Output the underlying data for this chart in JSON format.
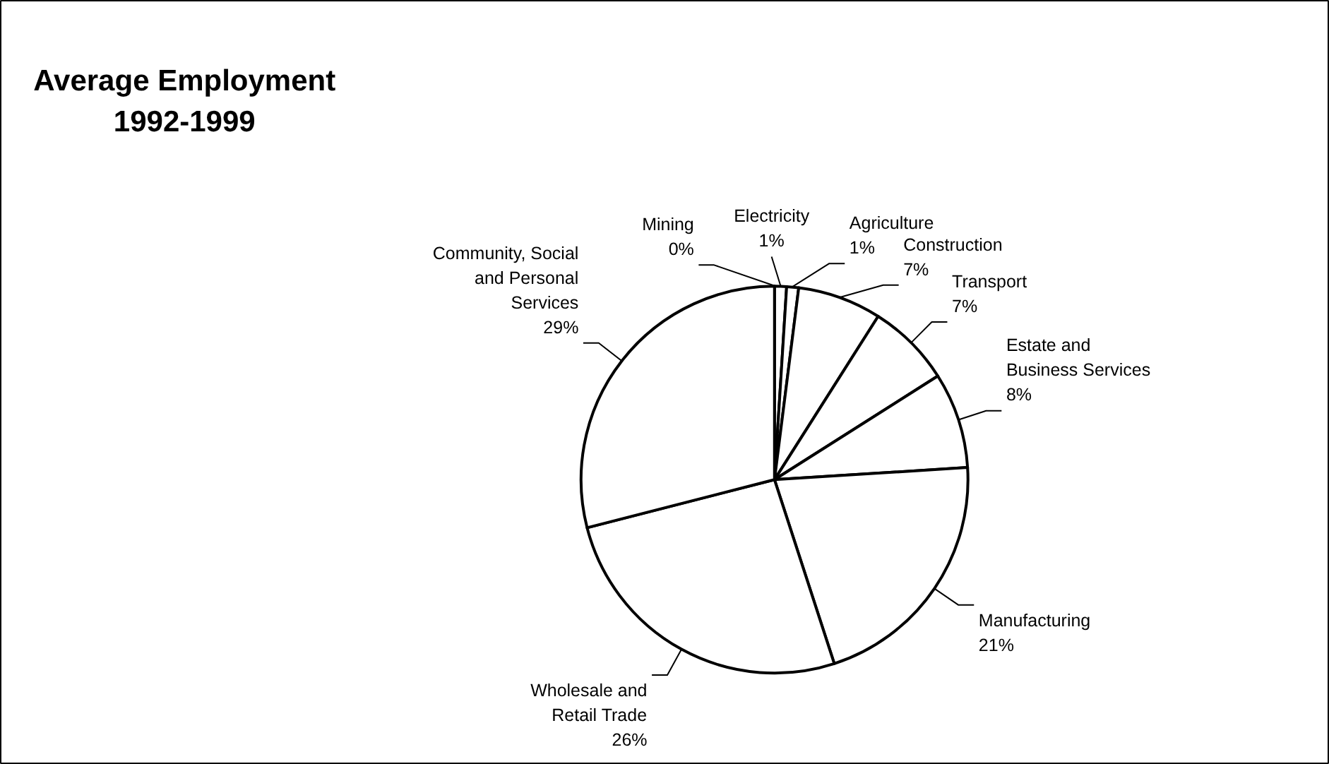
{
  "chart_data": {
    "type": "pie",
    "title": "Average Employment 1992-1999",
    "categories": [
      "Mining",
      "Electricity",
      "Agriculture",
      "Construction",
      "Transport",
      "Estate and Business Services",
      "Manufacturing",
      "Wholesale and Retail Trade",
      "Community, Social and Personal Services"
    ],
    "values": [
      0,
      1,
      1,
      7,
      7,
      8,
      21,
      26,
      29
    ],
    "value_labels": [
      "0%",
      "1%",
      "1%",
      "7%",
      "7%",
      "8%",
      "21%",
      "26%",
      "29%"
    ],
    "colors": [
      "#ffffff",
      "#ffffff",
      "#ffffff",
      "#ffffff",
      "#ffffff",
      "#ffffff",
      "#ffffff",
      "#ffffff",
      "#ffffff"
    ]
  }
}
